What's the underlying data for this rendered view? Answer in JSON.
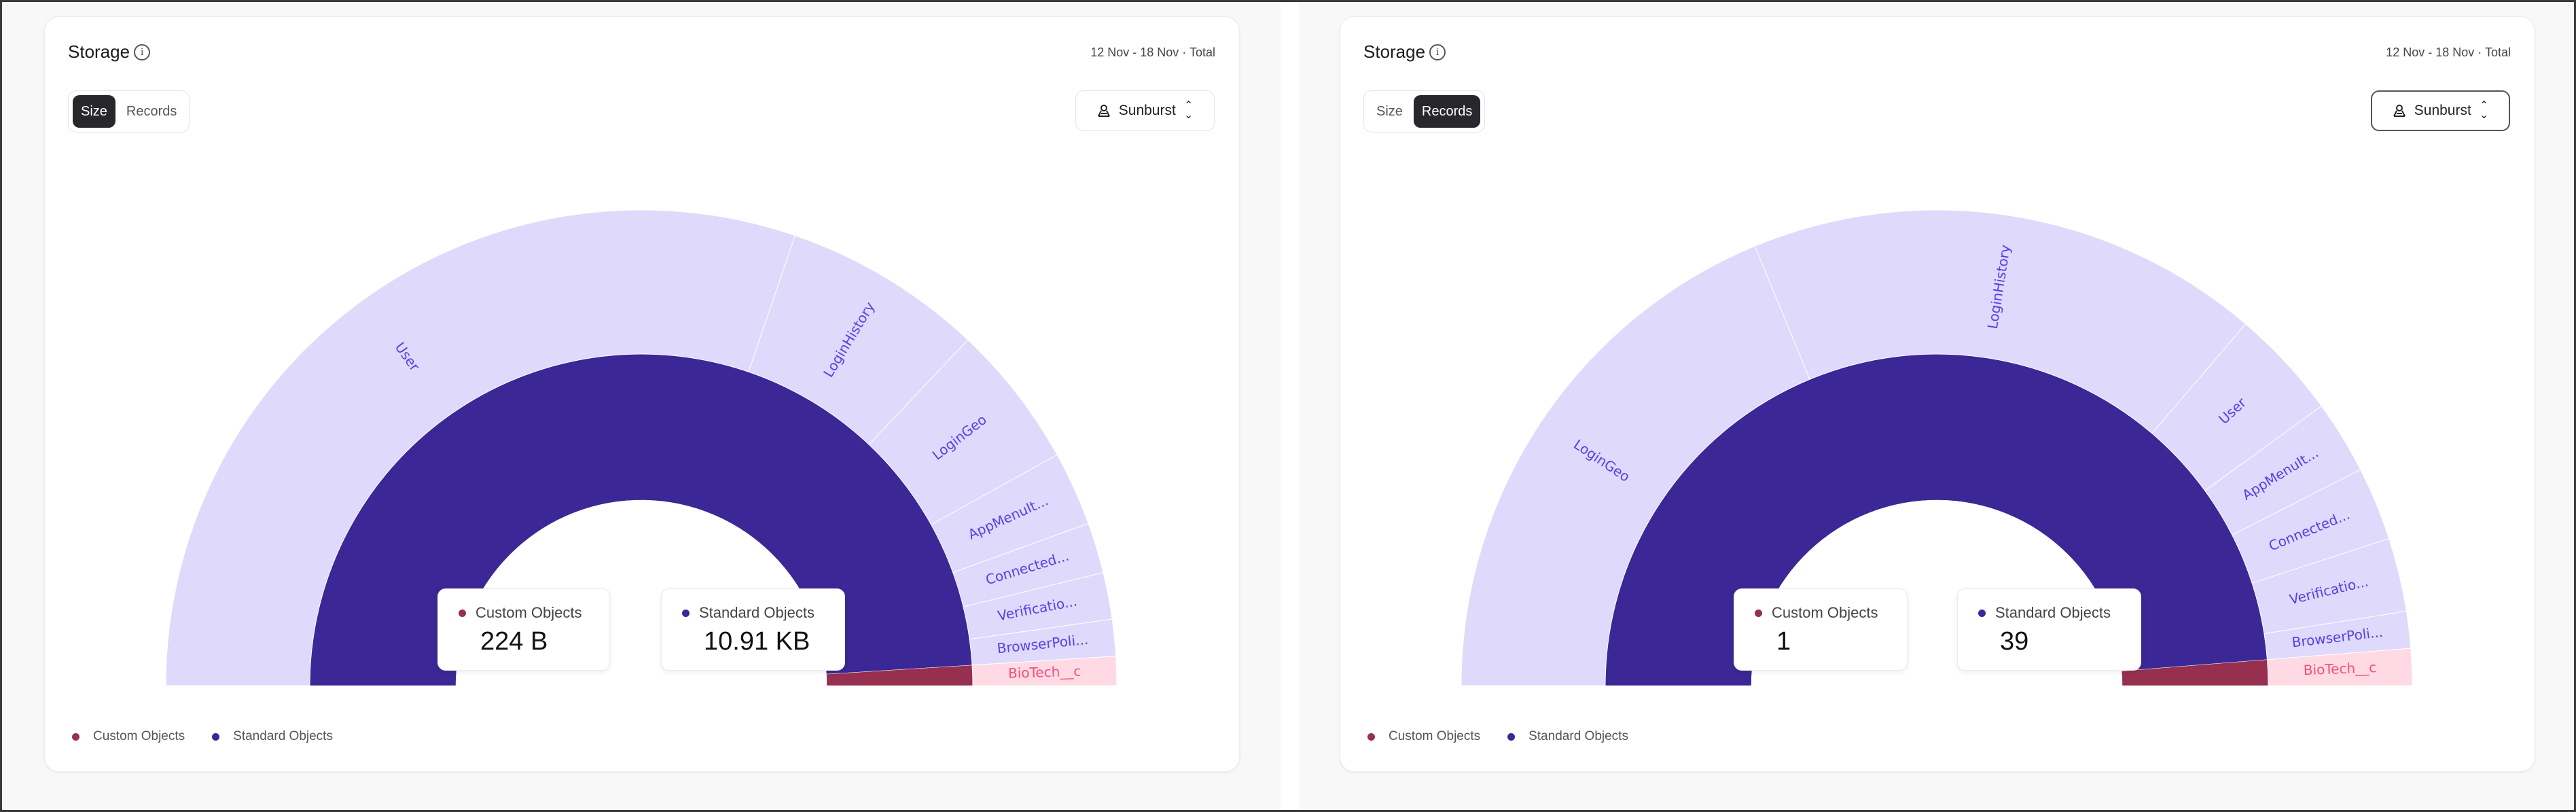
{
  "panels": [
    {
      "title": "Storage",
      "date_range": "12 Nov - 18 Nov · Total",
      "toggle": [
        "Size",
        "Records"
      ],
      "active": 0,
      "chart_type": "Sunburst",
      "tooltips": [
        {
          "label": "Custom Objects",
          "value": "224 B"
        },
        {
          "label": "Standard Objects",
          "value": "10.91 KB"
        }
      ],
      "legend": [
        "Custom Objects",
        "Standard Objects"
      ]
    },
    {
      "title": "Storage",
      "date_range": "12 Nov - 18 Nov · Total",
      "toggle": [
        "Size",
        "Records"
      ],
      "active": 1,
      "chart_type": "Sunburst",
      "tooltips": [
        {
          "label": "Custom Objects",
          "value": "1"
        },
        {
          "label": "Standard Objects",
          "value": "39"
        }
      ],
      "legend": [
        "Custom Objects",
        "Standard Objects"
      ]
    }
  ],
  "colors": {
    "custom": "#962f50",
    "standard": "#3b2795",
    "standard_child": "#dfd9fc",
    "custom_child": "#ffdae4",
    "standard_label": "#5a3ee6",
    "custom_label": "#f24f7c"
  },
  "chart_data": [
    {
      "type": "sunburst",
      "metric": "Size (bytes)",
      "half": true,
      "inner": [
        {
          "name": "Standard Objects",
          "value": 11172,
          "group": "standard"
        },
        {
          "name": "Custom Objects",
          "value": 224,
          "group": "custom"
        }
      ],
      "outer": [
        {
          "name": "User",
          "value": 6893,
          "group": "standard"
        },
        {
          "name": "LoginHistory",
          "value": 1551,
          "group": "standard"
        },
        {
          "name": "LoginGeo",
          "value": 1114,
          "group": "standard"
        },
        {
          "name": "AppMenuIt...",
          "value": 576,
          "group": "standard"
        },
        {
          "name": "Connected...",
          "value": 392,
          "group": "standard"
        },
        {
          "name": "Verificatio...",
          "value": 361,
          "group": "standard"
        },
        {
          "name": "BrowserPoli...",
          "value": 285,
          "group": "standard"
        },
        {
          "name": "BioTech__c",
          "value": 224,
          "group": "custom"
        }
      ]
    },
    {
      "type": "sunburst",
      "metric": "Records",
      "half": true,
      "inner": [
        {
          "name": "Standard Objects",
          "value": 39,
          "group": "standard"
        },
        {
          "name": "Custom Objects",
          "value": 1,
          "group": "custom"
        }
      ],
      "outer": [
        {
          "name": "LoginGeo",
          "value": 15,
          "group": "standard"
        },
        {
          "name": "LoginHistory",
          "value": 14,
          "group": "standard"
        },
        {
          "name": "User",
          "value": 3,
          "group": "standard"
        },
        {
          "name": "AppMenuIt...",
          "value": 2,
          "group": "standard"
        },
        {
          "name": "Connected...",
          "value": 2,
          "group": "standard"
        },
        {
          "name": "Verificatio...",
          "value": 2,
          "group": "standard"
        },
        {
          "name": "BrowserPoli...",
          "value": 1,
          "group": "standard"
        },
        {
          "name": "BioTech__c",
          "value": 1,
          "group": "custom"
        }
      ]
    }
  ]
}
